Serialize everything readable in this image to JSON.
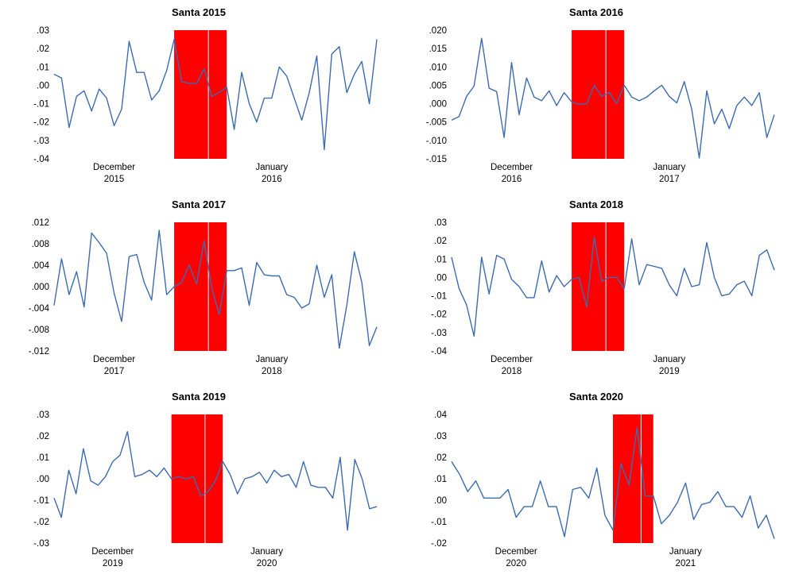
{
  "chart_data": [
    {
      "type": "line",
      "title": "Santa 2015",
      "ylim": [
        -0.04,
        0.03
      ],
      "yticks": [
        0.03,
        0.02,
        0.01,
        0.0,
        -0.01,
        -0.02,
        -0.03,
        -0.04
      ],
      "ytick_labels": [
        ".03",
        ".02",
        ".01",
        ".00",
        "-.01",
        "-.02",
        "-.03",
        "-.04"
      ],
      "x_labels": [
        {
          "month": "December",
          "year": "2015",
          "index": 8
        },
        {
          "month": "January",
          "year": "2016",
          "index": 29
        }
      ],
      "highlight": {
        "start": 16,
        "end": 23,
        "color": "#ff0000"
      },
      "values": [
        0.006,
        0.004,
        -0.023,
        -0.006,
        -0.003,
        -0.014,
        -0.002,
        -0.007,
        -0.022,
        -0.013,
        0.024,
        0.007,
        0.007,
        -0.008,
        -0.003,
        0.008,
        0.025,
        0.002,
        0.001,
        0.001,
        0.009,
        -0.006,
        -0.004,
        -0.001,
        -0.024,
        0.007,
        -0.01,
        -0.02,
        -0.007,
        -0.007,
        0.01,
        0.005,
        -0.007,
        -0.019,
        -0.004,
        0.016,
        -0.035,
        0.017,
        0.021,
        -0.004,
        0.006,
        0.013,
        -0.01,
        0.025
      ]
    },
    {
      "type": "line",
      "title": "Santa 2016",
      "ylim": [
        -0.015,
        0.02
      ],
      "yticks": [
        0.02,
        0.015,
        0.01,
        0.005,
        0.0,
        -0.005,
        -0.01,
        -0.015
      ],
      "ytick_labels": [
        ".020",
        ".015",
        ".010",
        ".005",
        ".000",
        "-.005",
        "-.010",
        "-.015"
      ],
      "x_labels": [
        {
          "month": "December",
          "year": "2016",
          "index": 8
        },
        {
          "month": "January",
          "year": "2017",
          "index": 29
        }
      ],
      "highlight": {
        "start": 16,
        "end": 23,
        "color": "#ff0000"
      },
      "values": [
        -0.0045,
        -0.0035,
        0.002,
        0.0048,
        0.0178,
        0.0042,
        0.0033,
        -0.0092,
        0.0112,
        -0.003,
        0.007,
        0.0018,
        0.0008,
        0.0035,
        -0.0005,
        0.003,
        0.0005,
        -0.0002,
        0.0,
        0.005,
        0.002,
        0.003,
        0.0,
        0.005,
        0.0018,
        0.0008,
        0.0018,
        0.0035,
        0.005,
        0.002,
        0.0002,
        0.006,
        -0.0015,
        -0.0148,
        0.0035,
        -0.0055,
        -0.0015,
        -0.0068,
        -0.0005,
        0.0018,
        -0.0005,
        0.003,
        -0.0092,
        -0.003
      ]
    },
    {
      "type": "line",
      "title": "Santa 2017",
      "ylim": [
        -0.012,
        0.012
      ],
      "yticks": [
        0.012,
        0.008,
        0.004,
        0.0,
        -0.004,
        -0.008,
        -0.012
      ],
      "ytick_labels": [
        ".012",
        ".008",
        ".004",
        ".000",
        "-.004",
        "-.008",
        "-.012"
      ],
      "x_labels": [
        {
          "month": "December",
          "year": "2017",
          "index": 8
        },
        {
          "month": "January",
          "year": "2018",
          "index": 29
        }
      ],
      "highlight": {
        "start": 16,
        "end": 23,
        "color": "#ff0000"
      },
      "values": [
        -0.0035,
        0.0052,
        -0.0015,
        0.0028,
        -0.0038,
        0.01,
        0.0082,
        0.0062,
        -0.0012,
        -0.0065,
        0.0056,
        0.006,
        0.0008,
        -0.0025,
        0.0105,
        -0.0015,
        0.0,
        0.0008,
        0.004,
        0.0005,
        0.0085,
        -0.0002,
        -0.0052,
        0.003,
        0.003,
        0.0035,
        -0.0035,
        0.0045,
        0.0022,
        0.002,
        0.002,
        -0.0015,
        -0.002,
        -0.004,
        -0.0032,
        0.004,
        -0.002,
        0.0022,
        -0.0115,
        -0.0035,
        0.0065,
        0.0008,
        -0.011,
        -0.0075
      ]
    },
    {
      "type": "line",
      "title": "Santa 2018",
      "ylim": [
        -0.04,
        0.03
      ],
      "yticks": [
        0.03,
        0.02,
        0.01,
        0.0,
        -0.01,
        -0.02,
        -0.03,
        -0.04
      ],
      "ytick_labels": [
        ".03",
        ".02",
        ".01",
        ".00",
        "-.01",
        "-.02",
        "-.03",
        "-.04"
      ],
      "x_labels": [
        {
          "month": "December",
          "year": "2018",
          "index": 8
        },
        {
          "month": "January",
          "year": "2019",
          "index": 29
        }
      ],
      "highlight": {
        "start": 16,
        "end": 23,
        "color": "#ff0000"
      },
      "values": [
        0.011,
        -0.006,
        -0.015,
        -0.032,
        0.011,
        -0.009,
        0.012,
        0.01,
        -0.001,
        -0.005,
        -0.011,
        -0.011,
        0.009,
        -0.008,
        0.001,
        -0.005,
        -0.001,
        0.0,
        -0.016,
        0.022,
        -0.002,
        0.0,
        0.0,
        -0.006,
        0.021,
        -0.004,
        0.007,
        0.006,
        0.005,
        -0.004,
        -0.01,
        0.005,
        -0.005,
        -0.004,
        0.019,
        0.0,
        -0.01,
        -0.009,
        -0.004,
        -0.002,
        -0.01,
        0.012,
        0.015,
        0.004
      ]
    },
    {
      "type": "line",
      "title": "Santa 2019",
      "ylim": [
        -0.03,
        0.03
      ],
      "yticks": [
        0.03,
        0.02,
        0.01,
        0.0,
        -0.01,
        -0.02,
        -0.03
      ],
      "ytick_labels": [
        ".03",
        ".02",
        ".01",
        ".00",
        "-.01",
        "-.02",
        "-.03"
      ],
      "x_labels": [
        {
          "month": "December",
          "year": "2019",
          "index": 8
        },
        {
          "month": "January",
          "year": "2020",
          "index": 29
        }
      ],
      "highlight": {
        "start": 16,
        "end": 23,
        "color": "#ff0000"
      },
      "values": [
        -0.009,
        -0.018,
        0.004,
        -0.007,
        0.014,
        -0.001,
        -0.003,
        0.001,
        0.008,
        0.011,
        0.022,
        0.001,
        0.002,
        0.004,
        0.001,
        0.005,
        0.0,
        0.001,
        0.0,
        0.001,
        -0.008,
        -0.006,
        -0.001,
        0.008,
        0.002,
        -0.007,
        0.0,
        0.001,
        0.003,
        -0.002,
        0.004,
        0.001,
        0.002,
        -0.004,
        0.008,
        -0.003,
        -0.004,
        -0.004,
        -0.009,
        0.01,
        -0.024,
        0.009,
        0.0,
        -0.014,
        -0.013
      ]
    },
    {
      "type": "line",
      "title": "Santa 2020",
      "ylim": [
        -0.02,
        0.04
      ],
      "yticks": [
        0.04,
        0.03,
        0.02,
        0.01,
        0.0,
        -0.01,
        -0.02
      ],
      "ytick_labels": [
        ".04",
        ".03",
        ".02",
        ".01",
        ".00",
        "-.01",
        "-.02"
      ],
      "x_labels": [
        {
          "month": "December",
          "year": "2020",
          "index": 8
        },
        {
          "month": "January",
          "year": "2021",
          "index": 29
        }
      ],
      "highlight": {
        "start": 20,
        "end": 25,
        "color": "#ff0000"
      },
      "values": [
        0.018,
        0.012,
        0.004,
        0.009,
        0.001,
        0.001,
        0.001,
        0.005,
        -0.008,
        -0.003,
        -0.003,
        0.009,
        -0.003,
        -0.003,
        -0.017,
        0.005,
        0.006,
        0.001,
        0.015,
        -0.007,
        -0.014,
        0.017,
        0.007,
        0.034,
        0.002,
        0.002,
        -0.011,
        -0.007,
        -0.001,
        0.008,
        -0.009,
        -0.002,
        -0.001,
        0.004,
        -0.003,
        -0.003,
        -0.008,
        0.002,
        -0.013,
        -0.007,
        -0.018
      ]
    }
  ]
}
